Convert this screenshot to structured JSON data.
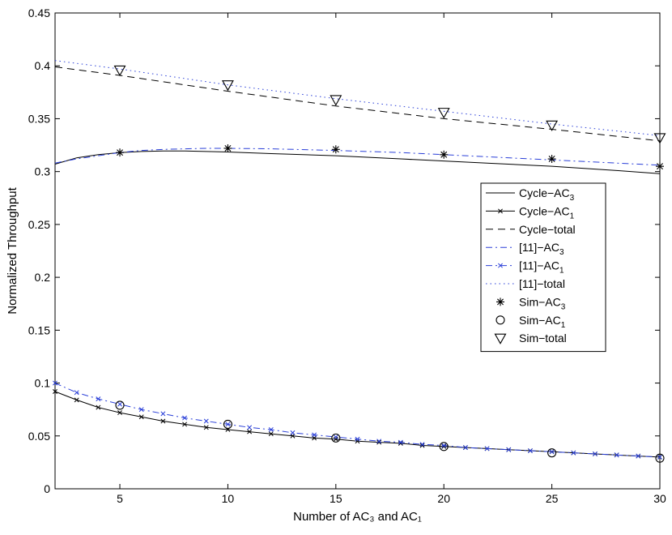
{
  "chart_data": {
    "type": "line",
    "xlabel": "Number of AC₃ and AC₁",
    "ylabel": "Normalized Throughput",
    "xlim": [
      2,
      30
    ],
    "ylim": [
      0,
      0.45
    ],
    "xticks": [
      5,
      10,
      15,
      20,
      25,
      30
    ],
    "yticks": [
      0,
      0.05,
      0.1,
      0.15,
      0.2,
      0.25,
      0.3,
      0.35,
      0.4,
      0.45
    ],
    "ytick_labels": [
      "0",
      "0.05",
      "0.1",
      "0.15",
      "0.2",
      "0.25",
      "0.3",
      "0.35",
      "0.4",
      "0.45"
    ],
    "grid": false,
    "legend_position": "center-right",
    "series": [
      {
        "name": "Cycle-AC3",
        "legend_main": "Cycle−AC",
        "legend_sub": "3",
        "color": "#000000",
        "style": "solid",
        "marker": "none",
        "x": [
          2,
          2.5,
          3,
          4,
          5,
          6,
          7,
          8,
          9,
          10,
          12,
          15,
          18,
          20,
          22,
          25,
          28,
          30
        ],
        "y": [
          0.307,
          0.31,
          0.313,
          0.316,
          0.318,
          0.319,
          0.3195,
          0.3195,
          0.319,
          0.3185,
          0.317,
          0.315,
          0.312,
          0.31,
          0.308,
          0.305,
          0.301,
          0.298
        ]
      },
      {
        "name": "Cycle-AC1",
        "legend_main": "Cycle−AC",
        "legend_sub": "1",
        "color": "#000000",
        "style": "solid",
        "marker": "x",
        "x": [
          2,
          3,
          4,
          5,
          6,
          7,
          8,
          9,
          10,
          11,
          12,
          13,
          14,
          15,
          16,
          17,
          18,
          19,
          20,
          21,
          22,
          23,
          24,
          25,
          26,
          27,
          28,
          29,
          30
        ],
        "y": [
          0.092,
          0.084,
          0.077,
          0.072,
          0.068,
          0.064,
          0.061,
          0.058,
          0.056,
          0.054,
          0.052,
          0.05,
          0.048,
          0.047,
          0.045,
          0.044,
          0.043,
          0.041,
          0.04,
          0.039,
          0.038,
          0.037,
          0.036,
          0.035,
          0.034,
          0.033,
          0.032,
          0.031,
          0.03
        ]
      },
      {
        "name": "Cycle-total",
        "legend_main": "Cycle−total",
        "legend_sub": "",
        "color": "#000000",
        "style": "dashed",
        "marker": "none",
        "x": [
          2,
          5,
          10,
          15,
          20,
          25,
          30
        ],
        "y": [
          0.399,
          0.391,
          0.376,
          0.362,
          0.35,
          0.34,
          0.329
        ]
      },
      {
        "name": "[11]-AC3",
        "legend_main": "[11]−AC",
        "legend_sub": "3",
        "color": "#2a3fd8",
        "style": "dashdot",
        "marker": "none",
        "x": [
          2,
          3,
          4,
          5,
          6,
          7,
          8,
          9,
          10,
          12,
          15,
          18,
          20,
          22,
          25,
          28,
          30
        ],
        "y": [
          0.308,
          0.312,
          0.315,
          0.318,
          0.32,
          0.321,
          0.3215,
          0.322,
          0.322,
          0.3215,
          0.32,
          0.318,
          0.316,
          0.314,
          0.311,
          0.308,
          0.306
        ]
      },
      {
        "name": "[11]-AC1",
        "legend_main": "[11]−AC",
        "legend_sub": "1",
        "color": "#2a3fd8",
        "style": "dashdot",
        "marker": "x",
        "x": [
          2,
          3,
          4,
          5,
          6,
          7,
          8,
          9,
          10,
          11,
          12,
          13,
          14,
          15,
          16,
          17,
          18,
          19,
          20,
          21,
          22,
          23,
          24,
          25,
          26,
          27,
          28,
          29,
          30
        ],
        "y": [
          0.1,
          0.091,
          0.085,
          0.08,
          0.075,
          0.071,
          0.067,
          0.064,
          0.061,
          0.058,
          0.056,
          0.053,
          0.051,
          0.049,
          0.047,
          0.045,
          0.044,
          0.042,
          0.041,
          0.039,
          0.038,
          0.037,
          0.036,
          0.035,
          0.034,
          0.033,
          0.032,
          0.031,
          0.03
        ]
      },
      {
        "name": "[11]-total",
        "legend_main": "[11]−total",
        "legend_sub": "",
        "color": "#2a3fd8",
        "style": "dotted",
        "marker": "none",
        "x": [
          2,
          5,
          10,
          15,
          20,
          25,
          30
        ],
        "y": [
          0.405,
          0.397,
          0.382,
          0.369,
          0.357,
          0.345,
          0.334
        ]
      },
      {
        "name": "Sim-AC3",
        "legend_main": "Sim−AC",
        "legend_sub": "3",
        "color": "#000000",
        "style": "none",
        "marker": "asterisk",
        "x": [
          5,
          10,
          15,
          20,
          25,
          30
        ],
        "y": [
          0.318,
          0.322,
          0.321,
          0.316,
          0.312,
          0.305
        ]
      },
      {
        "name": "Sim-AC1",
        "legend_main": "Sim−AC",
        "legend_sub": "1",
        "color": "#000000",
        "style": "none",
        "marker": "circle",
        "x": [
          5,
          10,
          15,
          20,
          25,
          30
        ],
        "y": [
          0.079,
          0.061,
          0.048,
          0.04,
          0.034,
          0.029
        ]
      },
      {
        "name": "Sim-total",
        "legend_main": "Sim−total",
        "legend_sub": "",
        "color": "#000000",
        "style": "none",
        "marker": "triangle-down",
        "x": [
          5,
          10,
          15,
          20,
          25,
          30
        ],
        "y": [
          0.396,
          0.382,
          0.368,
          0.356,
          0.344,
          0.332
        ]
      }
    ]
  }
}
